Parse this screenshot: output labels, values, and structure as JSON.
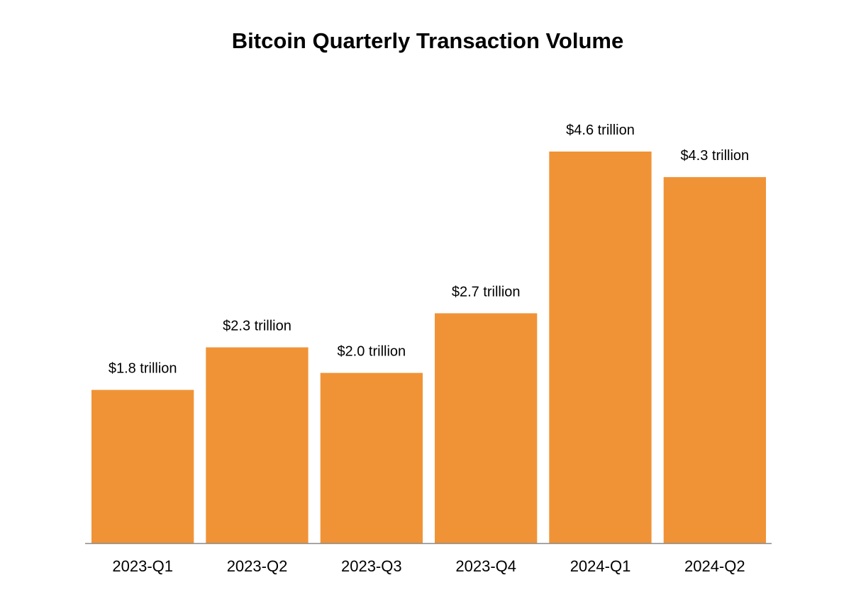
{
  "chart_data": {
    "type": "bar",
    "title": "Bitcoin Quarterly Transaction Volume",
    "xlabel": "",
    "ylabel": "",
    "categories": [
      "2023-Q1",
      "2023-Q2",
      "2023-Q3",
      "2023-Q4",
      "2024-Q1",
      "2024-Q2"
    ],
    "values": [
      1.8,
      2.3,
      2.0,
      2.7,
      4.6,
      4.3
    ],
    "data_labels": [
      "$1.8 trillion",
      "$2.3 trillion",
      "$2.0 trillion",
      "$2.7 trillion",
      "$4.6 trillion",
      "$4.3 trillion"
    ],
    "unit": "trillion USD",
    "ylim": [
      0,
      4.6
    ],
    "grid": false,
    "legend": "none",
    "bar_color": "#F09336",
    "axis_color": "#888888"
  }
}
